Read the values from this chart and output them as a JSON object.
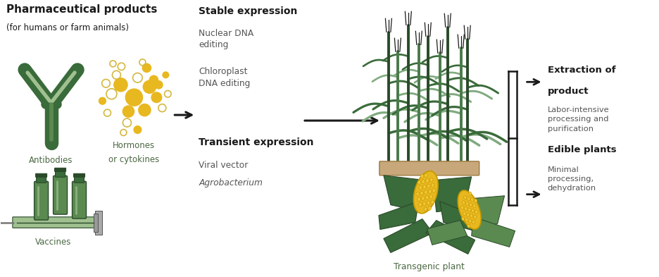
{
  "title": "Pharmaceutical products",
  "subtitle": "(for humans or farm animals)",
  "bg_color": "#ffffff",
  "text_color": "#1a1a1a",
  "label_color": "#4a6741",
  "arrow_color": "#1a1a1a",
  "green_dark": "#3a6b3a",
  "green_mid": "#5a8a50",
  "green_light": "#a0c090",
  "green_very_dark": "#2a4a2a",
  "gold": "#e8b820",
  "gold_outline": "#c49a00",
  "brown": "#c8a87a",
  "brown_dark": "#9a7840",
  "gray_mid": "#888888",
  "figsize": [
    9.37,
    3.93
  ],
  "dpi": 100,
  "xlim": [
    0,
    9.37
  ],
  "ylim": [
    0,
    3.93
  ]
}
